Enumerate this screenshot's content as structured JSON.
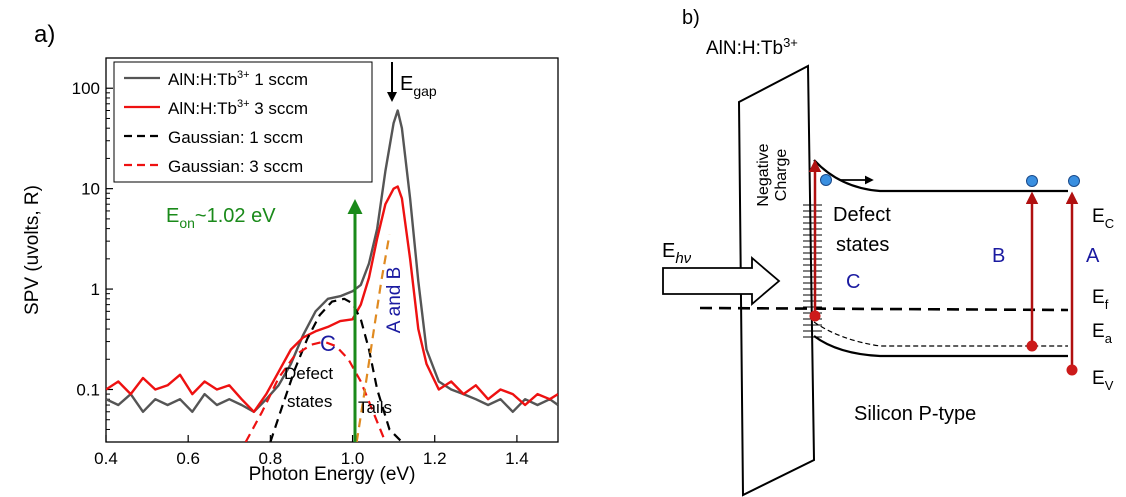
{
  "panel_a": {
    "label": "a)",
    "xlabel": "Photon Energy (eV)",
    "ylabel": "SPV (uvolts, R)",
    "annotations": {
      "egap_main": "E",
      "egap_sub": "gap",
      "eon_main": "E",
      "eon_sub": "on",
      "eon_rest": "~1.02 eV",
      "c": "C",
      "a_and_b": "A and B",
      "defect_line1": "Defect",
      "defect_line2": "states",
      "tails": "Tails"
    },
    "colors": {
      "gray": "#555555",
      "red": "#ee1111",
      "green": "#1a8a1a",
      "blue": "#1a1aa0",
      "orange": "#e08a20"
    }
  },
  "chart_data": {
    "type": "line",
    "xlabel": "Photon Energy (eV)",
    "ylabel": "SPV (uvolts, R)",
    "xlim": [
      0.4,
      1.5
    ],
    "ylim": [
      0.03,
      200
    ],
    "yscale": "log",
    "x_ticks": [
      "0.4",
      "0.6",
      "0.8",
      "1.0",
      "1.2",
      "1.4"
    ],
    "y_ticks": [
      "0.1",
      "1",
      "10",
      "100"
    ],
    "legend_position": "top-left",
    "series": [
      {
        "name": "AlN:H:Tb³⁺ 1 sccm",
        "legend_main": "AlN:H:Tb",
        "legend_sup": "3+",
        "legend_rest": " 1 sccm",
        "color": "#555555",
        "style": "solid",
        "x": [
          0.4,
          0.43,
          0.46,
          0.49,
          0.52,
          0.55,
          0.58,
          0.61,
          0.64,
          0.67,
          0.7,
          0.73,
          0.76,
          0.79,
          0.82,
          0.85,
          0.88,
          0.91,
          0.94,
          0.97,
          1.0,
          1.02,
          1.04,
          1.06,
          1.08,
          1.1,
          1.11,
          1.12,
          1.14,
          1.16,
          1.18,
          1.21,
          1.24,
          1.27,
          1.3,
          1.33,
          1.36,
          1.39,
          1.42,
          1.45,
          1.48,
          1.5
        ],
        "y": [
          0.08,
          0.07,
          0.09,
          0.06,
          0.08,
          0.07,
          0.08,
          0.06,
          0.09,
          0.07,
          0.08,
          0.07,
          0.06,
          0.08,
          0.11,
          0.18,
          0.35,
          0.6,
          0.8,
          0.85,
          0.95,
          1.1,
          1.8,
          4,
          15,
          45,
          60,
          40,
          8,
          1.2,
          0.25,
          0.12,
          0.1,
          0.09,
          0.08,
          0.07,
          0.08,
          0.06,
          0.08,
          0.07,
          0.08,
          0.07
        ]
      },
      {
        "name": "AlN:H:Tb³⁺ 3 sccm",
        "legend_main": "AlN:H:Tb",
        "legend_sup": "3+",
        "legend_rest": " 3 sccm",
        "color": "#ee1111",
        "style": "solid",
        "x": [
          0.4,
          0.43,
          0.46,
          0.49,
          0.52,
          0.55,
          0.58,
          0.61,
          0.64,
          0.67,
          0.7,
          0.73,
          0.76,
          0.79,
          0.82,
          0.85,
          0.88,
          0.91,
          0.94,
          0.97,
          1.0,
          1.02,
          1.04,
          1.06,
          1.08,
          1.1,
          1.11,
          1.12,
          1.14,
          1.16,
          1.18,
          1.21,
          1.24,
          1.27,
          1.3,
          1.33,
          1.36,
          1.39,
          1.42,
          1.45,
          1.48,
          1.5
        ],
        "y": [
          0.1,
          0.12,
          0.09,
          0.13,
          0.1,
          0.11,
          0.14,
          0.09,
          0.12,
          0.1,
          0.11,
          0.08,
          0.06,
          0.09,
          0.15,
          0.25,
          0.33,
          0.38,
          0.42,
          0.48,
          0.5,
          0.7,
          1.3,
          3.2,
          7,
          10,
          10.5,
          8,
          2,
          0.4,
          0.18,
          0.1,
          0.12,
          0.09,
          0.11,
          0.08,
          0.1,
          0.09,
          0.07,
          0.09,
          0.08,
          0.09
        ]
      },
      {
        "name": "Gaussian: 1 sccm",
        "legend_main": "Gaussian: 1 sccm",
        "color": "#000000",
        "style": "dashed",
        "x": [
          0.8,
          0.83,
          0.86,
          0.89,
          0.92,
          0.95,
          0.98,
          1.0,
          1.02,
          1.04,
          1.06,
          1.09,
          1.12
        ],
        "y": [
          0.03,
          0.07,
          0.16,
          0.32,
          0.55,
          0.75,
          0.8,
          0.72,
          0.5,
          0.25,
          0.1,
          0.04,
          0.03
        ]
      },
      {
        "name": "Gaussian: 3 sccm",
        "legend_main": "Gaussian: 3 sccm",
        "color": "#ee1111",
        "style": "dashed",
        "x": [
          0.74,
          0.78,
          0.82,
          0.86,
          0.9,
          0.93,
          0.96,
          0.99,
          1.02,
          1.05,
          1.08
        ],
        "y": [
          0.03,
          0.06,
          0.13,
          0.22,
          0.28,
          0.3,
          0.27,
          0.2,
          0.12,
          0.06,
          0.03
        ]
      },
      {
        "name": "Tails",
        "color": "#e08a20",
        "style": "dashed",
        "x": [
          1.01,
          1.03,
          1.05,
          1.07,
          1.09
        ],
        "y": [
          0.03,
          0.1,
          0.35,
          1.2,
          3.5
        ]
      }
    ]
  },
  "panel_b": {
    "label": "b)",
    "material": "AlN:H:Tb",
    "material_sup": "3+",
    "negative_line1": "Negative",
    "negative_line2": "Charge",
    "defect_line1": "Defect",
    "defect_line2": "states",
    "ehv_main": "E",
    "ehv_sub": "hν",
    "c": "C",
    "b": "B",
    "a": "A",
    "ec_main": "E",
    "ec_sub": "C",
    "ef_main": "E",
    "ef_sub": "f",
    "ea_main": "E",
    "ea_sub": "a",
    "ev_main": "E",
    "ev_sub": "V",
    "substrate": "Silicon P-type"
  }
}
